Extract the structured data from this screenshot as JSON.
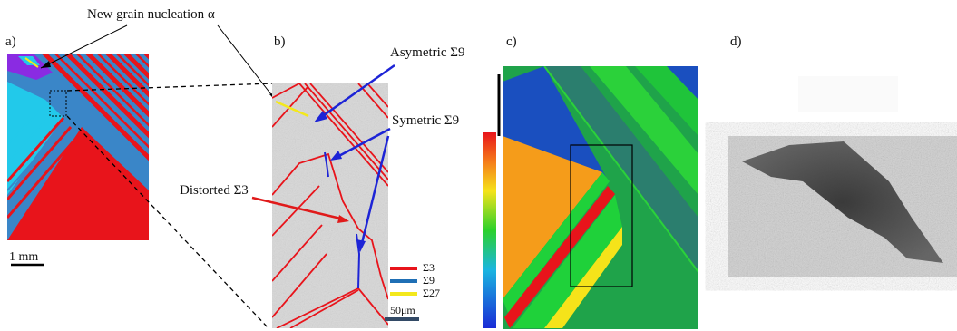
{
  "panels": {
    "a": {
      "label": "a)",
      "scale_label": "1 mm"
    },
    "b": {
      "label": "b)",
      "scale_label": "50μm"
    },
    "c": {
      "label": "c)"
    },
    "d": {
      "label": "d)"
    }
  },
  "annotations": {
    "nucleation": "New grain nucleation α",
    "asymmetric": "Asymetric Σ9",
    "symmetric": "Symetric Σ9",
    "distorted": "Distorted Σ3"
  },
  "legend": [
    {
      "label": "Σ3",
      "color": "#e8141b"
    },
    {
      "label": "Σ9",
      "color": "#1f6fb5"
    },
    {
      "label": "Σ27",
      "color": "#f3e81c"
    }
  ],
  "colors": {
    "ebsd_red": "#e8141b",
    "ebsd_blue": "#3a86c8",
    "ebsd_cyan": "#22c9ea",
    "ebsd_purple": "#8a2be2",
    "sim_green": "#1fa34a",
    "sim_teal": "#2b7e6e",
    "sim_orange": "#f59c1a",
    "sim_yellow": "#f5e31a",
    "sim_blue": "#1a4fbf",
    "arrow_blue": "#1d24d6",
    "arrow_red": "#e01a1a"
  }
}
